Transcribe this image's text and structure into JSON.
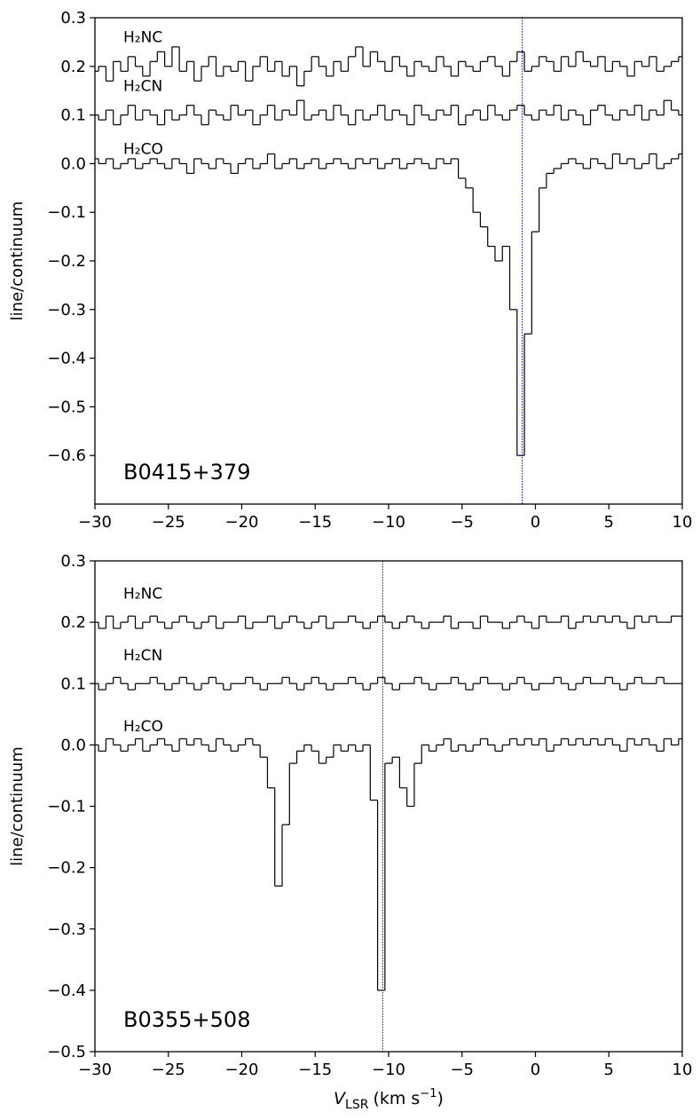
{
  "chart_data": [
    {
      "type": "line",
      "step": "mid",
      "annotation": "B0415+379",
      "ylabel": "line/continuum",
      "xlim": [
        -30,
        10
      ],
      "ylim": [
        -0.7,
        0.3
      ],
      "xticks": [
        {
          "value": -30,
          "label": "−30"
        },
        {
          "value": -25,
          "label": "−25"
        },
        {
          "value": -20,
          "label": "−20"
        },
        {
          "value": -15,
          "label": "−15"
        },
        {
          "value": -10,
          "label": "−10"
        },
        {
          "value": -5,
          "label": "−5"
        },
        0,
        5,
        10
      ],
      "yticks": [
        0.3,
        0.2,
        0.1,
        {
          "value": 0,
          "label": "0.0"
        },
        {
          "value": -0.1,
          "label": "−0.1"
        },
        {
          "value": -0.2,
          "label": "−0.2"
        },
        {
          "value": -0.3,
          "label": "−0.3"
        },
        {
          "value": -0.4,
          "label": "−0.4"
        },
        {
          "value": -0.5,
          "label": "−0.5"
        },
        {
          "value": -0.6,
          "label": "−0.6"
        }
      ],
      "vline": {
        "x": -0.9,
        "color": "#0000cc"
      },
      "x": [
        -30,
        -29.5,
        -29,
        -28.5,
        -28,
        -27.5,
        -27,
        -26.5,
        -26,
        -25.5,
        -25,
        -24.5,
        -24,
        -23.5,
        -23,
        -22.5,
        -22,
        -21.5,
        -21,
        -20.5,
        -20,
        -19.5,
        -19,
        -18.5,
        -18,
        -17.5,
        -17,
        -16.5,
        -16,
        -15.5,
        -15,
        -14.5,
        -14,
        -13.5,
        -13,
        -12.5,
        -12,
        -11.5,
        -11,
        -10.5,
        -10,
        -9.5,
        -9,
        -8.5,
        -8,
        -7.5,
        -7,
        -6.5,
        -6,
        -5.5,
        -5,
        -4.5,
        -4,
        -3.5,
        -3,
        -2.5,
        -2,
        -1.5,
        -1,
        -0.5,
        0,
        0.5,
        1,
        1.5,
        2,
        2.5,
        3,
        3.5,
        4,
        4.5,
        5,
        5.5,
        6,
        6.5,
        7,
        7.5,
        8,
        8.5,
        9,
        9.5,
        10
      ],
      "series": [
        {
          "name": "H₂NC",
          "color": "#000000",
          "values": [
            0.19,
            0.2,
            0.17,
            0.21,
            0.19,
            0.22,
            0.2,
            0.18,
            0.21,
            0.23,
            0.2,
            0.24,
            0.19,
            0.21,
            0.17,
            0.2,
            0.22,
            0.18,
            0.2,
            0.19,
            0.21,
            0.17,
            0.2,
            0.22,
            0.19,
            0.21,
            0.18,
            0.2,
            0.16,
            0.19,
            0.22,
            0.2,
            0.18,
            0.21,
            0.19,
            0.22,
            0.24,
            0.2,
            0.23,
            0.21,
            0.19,
            0.22,
            0.2,
            0.18,
            0.21,
            0.2,
            0.19,
            0.22,
            0.2,
            0.18,
            0.21,
            0.2,
            0.19,
            0.21,
            0.22,
            0.2,
            0.18,
            0.21,
            0.23,
            0.19,
            0.2,
            0.22,
            0.21,
            0.19,
            0.22,
            0.2,
            0.23,
            0.21,
            0.2,
            0.22,
            0.19,
            0.21,
            0.2,
            0.18,
            0.21,
            0.2,
            0.22,
            0.19,
            0.2,
            0.21,
            0.22
          ]
        },
        {
          "name": "H₂CN",
          "color": "#000000",
          "values": [
            0.1,
            0.09,
            0.11,
            0.08,
            0.1,
            0.12,
            0.09,
            0.11,
            0.1,
            0.08,
            0.11,
            0.09,
            0.1,
            0.12,
            0.1,
            0.08,
            0.11,
            0.1,
            0.09,
            0.12,
            0.1,
            0.11,
            0.08,
            0.1,
            0.12,
            0.09,
            0.11,
            0.1,
            0.13,
            0.09,
            0.1,
            0.11,
            0.09,
            0.12,
            0.1,
            0.08,
            0.11,
            0.09,
            0.1,
            0.12,
            0.09,
            0.11,
            0.1,
            0.08,
            0.12,
            0.1,
            0.09,
            0.11,
            0.1,
            0.12,
            0.08,
            0.1,
            0.11,
            0.09,
            0.12,
            0.1,
            0.09,
            0.11,
            0.12,
            0.1,
            0.09,
            0.11,
            0.1,
            0.12,
            0.09,
            0.11,
            0.1,
            0.08,
            0.11,
            0.12,
            0.1,
            0.09,
            0.11,
            0.1,
            0.12,
            0.09,
            0.11,
            0.1,
            0.13,
            0.11,
            0.1
          ]
        },
        {
          "name": "H₂CO",
          "color": "#000000",
          "values": [
            0.01,
            0.0,
            0.01,
            -0.01,
            0.0,
            0.01,
            -0.01,
            0.0,
            0.01,
            0.0,
            -0.01,
            0.01,
            0.0,
            -0.02,
            0.01,
            0.0,
            -0.01,
            0.01,
            0.0,
            -0.02,
            0.0,
            0.01,
            -0.01,
            0.0,
            0.02,
            -0.01,
            0.0,
            0.01,
            -0.01,
            0.0,
            0.01,
            -0.01,
            0.0,
            0.01,
            0.0,
            -0.01,
            0.01,
            0.0,
            0.01,
            -0.01,
            0.0,
            0.01,
            -0.01,
            0.0,
            0.01,
            0.0,
            -0.01,
            0.01,
            0.0,
            0.01,
            -0.03,
            -0.05,
            -0.1,
            -0.13,
            -0.17,
            -0.2,
            -0.17,
            -0.3,
            -0.6,
            -0.35,
            -0.14,
            -0.05,
            -0.02,
            -0.01,
            0.0,
            0.01,
            0.0,
            -0.01,
            0.01,
            0.0,
            -0.01,
            0.02,
            0.0,
            0.01,
            -0.01,
            0.0,
            0.02,
            -0.01,
            0.0,
            0.01,
            0.02
          ]
        }
      ]
    },
    {
      "type": "line",
      "step": "mid",
      "annotation": "B0355+508",
      "ylabel": "line/continuum",
      "xlabel": {
        "variable": "V",
        "subscript": "LSR",
        "unit": "(km s",
        "exponent": "−1",
        "close": ")"
      },
      "xlim": [
        -30,
        10
      ],
      "ylim": [
        -0.5,
        0.3
      ],
      "xticks": [
        {
          "value": -30,
          "label": "−30"
        },
        {
          "value": -25,
          "label": "−25"
        },
        {
          "value": -20,
          "label": "−20"
        },
        {
          "value": -15,
          "label": "−15"
        },
        {
          "value": -10,
          "label": "−10"
        },
        {
          "value": -5,
          "label": "−5"
        },
        0,
        5,
        10
      ],
      "yticks": [
        0.3,
        0.2,
        0.1,
        {
          "value": 0,
          "label": "0.0"
        },
        {
          "value": -0.1,
          "label": "−0.1"
        },
        {
          "value": -0.2,
          "label": "−0.2"
        },
        {
          "value": -0.3,
          "label": "−0.3"
        },
        {
          "value": -0.4,
          "label": "−0.4"
        },
        {
          "value": -0.5,
          "label": "−0.5"
        }
      ],
      "vline": {
        "x": -10.4,
        "color": "#0000cc"
      },
      "x": [
        -30,
        -29.5,
        -29,
        -28.5,
        -28,
        -27.5,
        -27,
        -26.5,
        -26,
        -25.5,
        -25,
        -24.5,
        -24,
        -23.5,
        -23,
        -22.5,
        -22,
        -21.5,
        -21,
        -20.5,
        -20,
        -19.5,
        -19,
        -18.5,
        -18,
        -17.5,
        -17,
        -16.5,
        -16,
        -15.5,
        -15,
        -14.5,
        -14,
        -13.5,
        -13,
        -12.5,
        -12,
        -11.5,
        -11,
        -10.5,
        -10,
        -9.5,
        -9,
        -8.5,
        -8,
        -7.5,
        -7,
        -6.5,
        -6,
        -5.5,
        -5,
        -4.5,
        -4,
        -3.5,
        -3,
        -2.5,
        -2,
        -1.5,
        -1,
        -0.5,
        0,
        0.5,
        1,
        1.5,
        2,
        2.5,
        3,
        3.5,
        4,
        4.5,
        5,
        5.5,
        6,
        6.5,
        7,
        7.5,
        8,
        8.5,
        9,
        9.5,
        10
      ],
      "series": [
        {
          "name": "H₂NC",
          "color": "#000000",
          "values": [
            0.2,
            0.19,
            0.21,
            0.19,
            0.2,
            0.21,
            0.19,
            0.2,
            0.21,
            0.2,
            0.19,
            0.2,
            0.21,
            0.2,
            0.19,
            0.2,
            0.21,
            0.19,
            0.2,
            0.2,
            0.21,
            0.19,
            0.2,
            0.2,
            0.21,
            0.19,
            0.2,
            0.21,
            0.2,
            0.19,
            0.2,
            0.21,
            0.19,
            0.2,
            0.2,
            0.21,
            0.2,
            0.19,
            0.2,
            0.21,
            0.2,
            0.19,
            0.2,
            0.21,
            0.2,
            0.19,
            0.2,
            0.2,
            0.21,
            0.19,
            0.2,
            0.2,
            0.19,
            0.21,
            0.2,
            0.2,
            0.19,
            0.2,
            0.21,
            0.2,
            0.19,
            0.21,
            0.2,
            0.2,
            0.21,
            0.19,
            0.2,
            0.21,
            0.2,
            0.21,
            0.2,
            0.21,
            0.2,
            0.19,
            0.21,
            0.2,
            0.21,
            0.2,
            0.2,
            0.21,
            0.21
          ]
        },
        {
          "name": "H₂CN",
          "color": "#000000",
          "values": [
            0.1,
            0.09,
            0.1,
            0.11,
            0.1,
            0.09,
            0.1,
            0.1,
            0.11,
            0.1,
            0.09,
            0.1,
            0.11,
            0.1,
            0.09,
            0.1,
            0.11,
            0.1,
            0.09,
            0.1,
            0.1,
            0.11,
            0.1,
            0.09,
            0.1,
            0.1,
            0.11,
            0.1,
            0.09,
            0.1,
            0.11,
            0.1,
            0.09,
            0.1,
            0.1,
            0.11,
            0.1,
            0.09,
            0.1,
            0.11,
            0.1,
            0.09,
            0.1,
            0.1,
            0.11,
            0.1,
            0.09,
            0.1,
            0.1,
            0.11,
            0.1,
            0.09,
            0.1,
            0.11,
            0.1,
            0.1,
            0.09,
            0.1,
            0.11,
            0.1,
            0.09,
            0.1,
            0.1,
            0.11,
            0.1,
            0.09,
            0.1,
            0.11,
            0.1,
            0.1,
            0.11,
            0.1,
            0.09,
            0.1,
            0.11,
            0.1,
            0.1,
            0.11,
            0.1,
            0.1,
            0.1
          ]
        },
        {
          "name": "H₂CO",
          "color": "#000000",
          "values": [
            0.0,
            -0.01,
            0.01,
            0.0,
            -0.01,
            0.0,
            0.01,
            -0.01,
            0.0,
            0.01,
            0.0,
            -0.01,
            0.01,
            0.0,
            0.01,
            0.0,
            -0.01,
            0.01,
            0.0,
            -0.01,
            0.0,
            0.01,
            0.0,
            -0.02,
            -0.07,
            -0.23,
            -0.13,
            -0.03,
            -0.01,
            0.0,
            -0.01,
            -0.03,
            -0.02,
            0.0,
            -0.01,
            0.0,
            -0.01,
            0.0,
            -0.09,
            -0.4,
            -0.03,
            -0.02,
            -0.07,
            -0.1,
            -0.03,
            0.0,
            -0.01,
            0.0,
            0.01,
            -0.01,
            0.0,
            -0.01,
            0.0,
            0.01,
            0.0,
            -0.01,
            0.0,
            0.01,
            0.0,
            0.01,
            0.0,
            0.01,
            -0.01,
            0.0,
            0.01,
            0.0,
            0.01,
            0.0,
            0.01,
            0.0,
            0.01,
            0.0,
            -0.01,
            0.01,
            0.0,
            0.01,
            0.0,
            -0.01,
            0.01,
            0.0,
            0.01
          ]
        }
      ]
    }
  ]
}
